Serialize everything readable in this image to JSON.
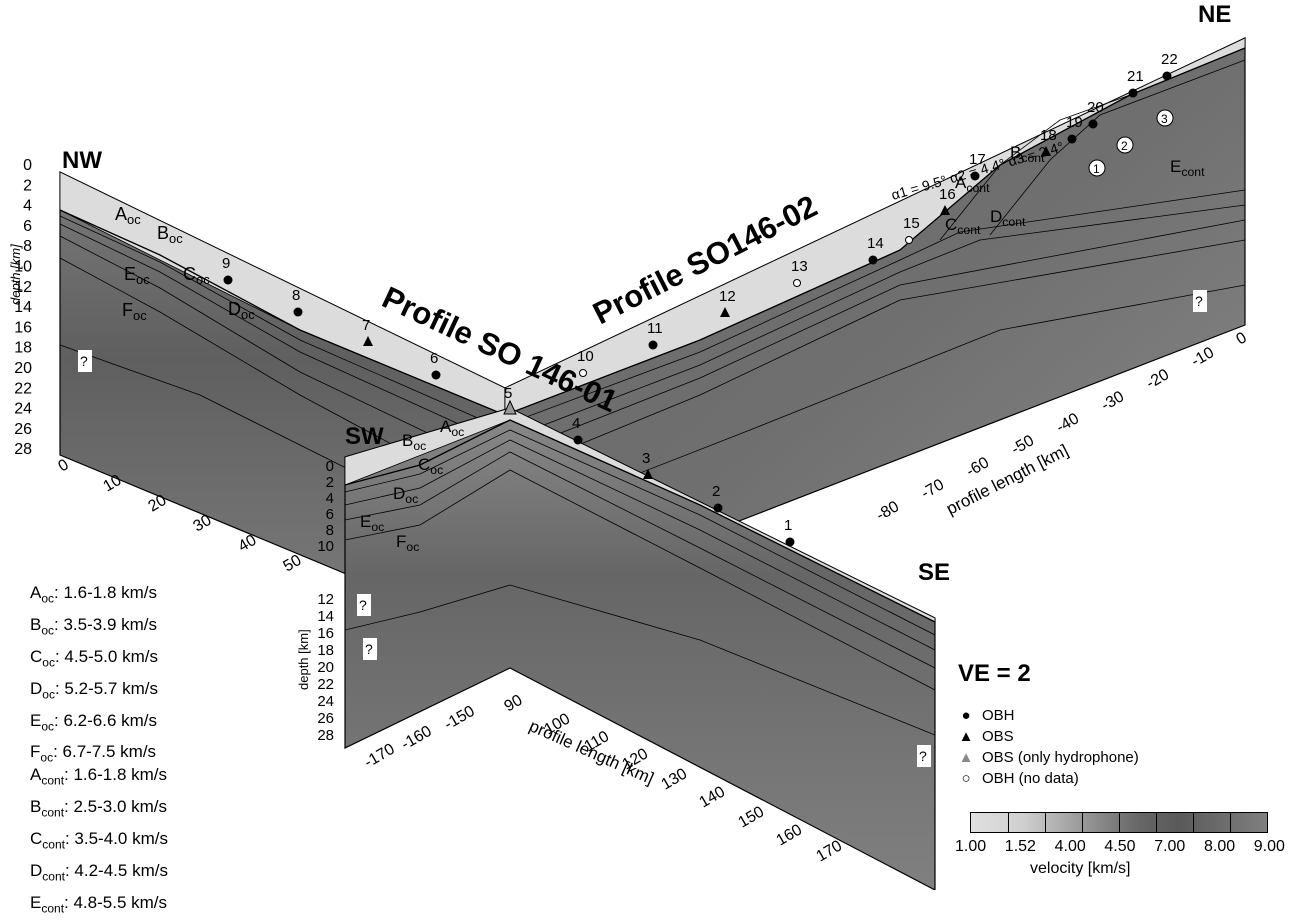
{
  "profile1": {
    "title": "Profile SO 146-01",
    "end_left": "SW",
    "end_right": "SE"
  },
  "profile2": {
    "title": "Profile SO146-02",
    "end_left": "NW",
    "end_right": "NE"
  },
  "depth_axis_label": "depth [km]",
  "profile_length_label": "profile length [km]",
  "depth_ticks_nw": [
    "0",
    "2",
    "4",
    "6",
    "8",
    "10",
    "12",
    "14",
    "16",
    "18",
    "20",
    "22",
    "24",
    "26",
    "28"
  ],
  "depth_ticks_sw_top": [
    "0",
    "2",
    "4",
    "6",
    "8",
    "10"
  ],
  "depth_ticks_sw_bottom": [
    "12",
    "14",
    "16",
    "18",
    "20",
    "22",
    "24",
    "26",
    "28"
  ],
  "nw_length_ticks": [
    "0",
    "10",
    "20",
    "30",
    "40",
    "50"
  ],
  "sw_length_ticks": [
    "-170",
    "-160",
    "-150",
    "90",
    "100",
    "110",
    "120",
    "130",
    "140",
    "150",
    "160",
    "170"
  ],
  "ne_length_ticks": [
    "0",
    "-10",
    "-20",
    "-30",
    "-40",
    "-50",
    "-60",
    "-70",
    "-80"
  ],
  "stations_p1": [
    {
      "n": "1",
      "type": "OBH"
    },
    {
      "n": "2",
      "type": "OBH"
    },
    {
      "n": "3",
      "type": "OBS"
    },
    {
      "n": "4",
      "type": "OBH"
    },
    {
      "n": "5",
      "type": "OBS (only hydrophone)"
    },
    {
      "n": "6",
      "type": "OBH"
    },
    {
      "n": "7",
      "type": "OBS"
    },
    {
      "n": "8",
      "type": "OBH"
    },
    {
      "n": "9",
      "type": "OBH"
    }
  ],
  "stations_p2": [
    {
      "n": "10",
      "type": "OBH (no data)"
    },
    {
      "n": "11",
      "type": "OBH"
    },
    {
      "n": "12",
      "type": "OBS"
    },
    {
      "n": "13",
      "type": "OBH (no data)"
    },
    {
      "n": "14",
      "type": "OBH"
    },
    {
      "n": "15",
      "type": "OBH (no data)"
    },
    {
      "n": "16",
      "type": "OBS"
    },
    {
      "n": "17",
      "type": "OBH"
    },
    {
      "n": "18",
      "type": "OBS"
    },
    {
      "n": "19",
      "type": "OBH"
    },
    {
      "n": "20",
      "type": "OBH"
    },
    {
      "n": "21",
      "type": "OBH"
    },
    {
      "n": "22",
      "type": "OBH"
    }
  ],
  "slope_angles": "α1 = 9.5° α2 = 4.4° α3 = 2.4°",
  "circled": [
    "1",
    "2",
    "3"
  ],
  "question_mark": "?",
  "velocities_oc": [
    {
      "layer": "A",
      "sub": "oc",
      "range": "1.6-1.8 km/s"
    },
    {
      "layer": "B",
      "sub": "oc",
      "range": "3.5-3.9 km/s"
    },
    {
      "layer": "C",
      "sub": "oc",
      "range": "4.5-5.0 km/s"
    },
    {
      "layer": "D",
      "sub": "oc",
      "range": "5.2-5.7 km/s"
    },
    {
      "layer": "E",
      "sub": "oc",
      "range": "6.2-6.6 km/s"
    },
    {
      "layer": "F",
      "sub": "oc",
      "range": "6.7-7.5 km/s"
    }
  ],
  "velocities_cont": [
    {
      "layer": "A",
      "sub": "cont",
      "range": "1.6-1.8 km/s"
    },
    {
      "layer": "B",
      "sub": "cont",
      "range": "2.5-3.0 km/s"
    },
    {
      "layer": "C",
      "sub": "cont",
      "range": "3.5-4.0 km/s"
    },
    {
      "layer": "D",
      "sub": "cont",
      "range": "4.2-4.5 km/s"
    },
    {
      "layer": "E",
      "sub": "cont",
      "range": "4.8-5.5 km/s"
    }
  ],
  "ve_label": "VE = 2",
  "legend": [
    {
      "symbol": "●",
      "label": "OBH"
    },
    {
      "symbol": "▲",
      "label": "OBS"
    },
    {
      "symbol": "▲",
      "label": "OBS (only hydrophone)",
      "color": "#888888"
    },
    {
      "symbol": "○",
      "label": "OBH (no data)"
    }
  ],
  "colorbar": {
    "ticks": [
      "1.00",
      "1.52",
      "4.00",
      "4.50",
      "7.00",
      "8.00",
      "9.00"
    ],
    "title": "velocity [km/s]"
  }
}
